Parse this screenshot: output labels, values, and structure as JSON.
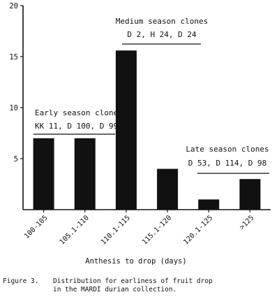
{
  "chart_data": {
    "type": "bar",
    "xlabel": "Anthesis to drop (days)",
    "ylabel": "",
    "ylim": [
      0,
      20
    ],
    "yticks": [
      5,
      10,
      15,
      20
    ],
    "categories": [
      "100-105",
      "105.1-110",
      "110.1-115",
      "115.1-120",
      "120.1-125",
      ">125"
    ],
    "values": [
      7,
      7,
      15.6,
      4,
      1,
      3
    ],
    "annotations": [
      {
        "title": "Early season clones",
        "clones": "KK 11, D 100, D 99",
        "categories": [
          "100-105",
          "105.1-110"
        ]
      },
      {
        "title": "Medium season clones",
        "clones": "D 2, H 24, D 24",
        "categories": [
          "110.1-115",
          "115.1-120"
        ]
      },
      {
        "title": "Late season clones",
        "clones": "D 53, D 114, D 98",
        "categories": [
          "120.1-125",
          ">125"
        ]
      }
    ],
    "grid": false,
    "legend": "none"
  },
  "caption": {
    "label": "Figure 3.",
    "line1": "Distribution for earliness of fruit drop",
    "line2": "in the MARDI durian collection."
  }
}
